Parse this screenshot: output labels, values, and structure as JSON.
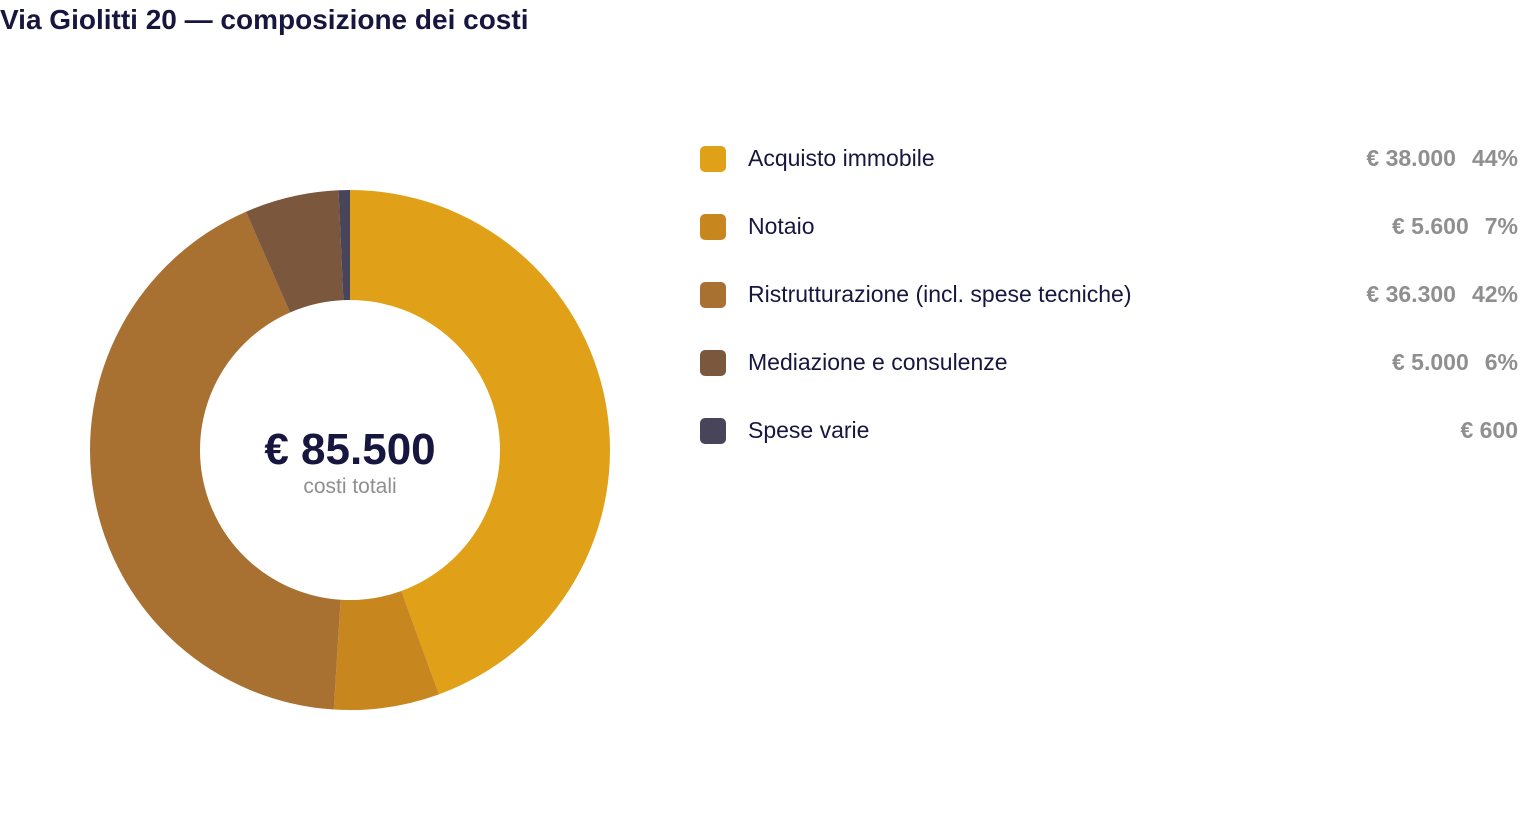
{
  "title": "Via Giolitti 20 — composizione dei costi",
  "total": {
    "value": "€ 85.500",
    "label": "costi totali"
  },
  "chart_data": {
    "type": "pie",
    "title": "Via Giolitti 20 — composizione dei costi",
    "total": 85500,
    "categories": [
      "Acquisto immobile",
      "Notaio",
      "Ristrutturazione (incl. spese tecniche)",
      "Mediazione e consulenze",
      "Spese varie"
    ],
    "values": [
      38000,
      5600,
      36300,
      5000,
      600
    ],
    "value_labels": [
      "€ 38.000",
      "€ 5.600",
      "€ 36.300",
      "€ 5.000",
      "€ 600"
    ],
    "percent_labels": [
      "44%",
      "7%",
      "42%",
      "6%",
      ""
    ],
    "colors": [
      "#e0a017",
      "#c8861f",
      "#a87132",
      "#7a573d",
      "#48455a"
    ],
    "legend_position": "right"
  }
}
